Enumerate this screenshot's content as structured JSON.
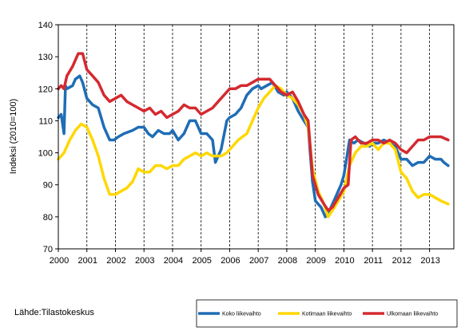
{
  "source_text": "Lähde:Tilastokeskus",
  "chart_data": {
    "type": "line",
    "ylabel": "Indeksi (2010=100)",
    "xlabel": "",
    "ylim": [
      70,
      140
    ],
    "xlim": [
      2000.0,
      2013.85
    ],
    "y_ticks": [
      70,
      80,
      90,
      100,
      110,
      120,
      130,
      140
    ],
    "x_ticks": [
      2000,
      2001,
      2002,
      2003,
      2004,
      2005,
      2006,
      2007,
      2008,
      2009,
      2010,
      2011,
      2012,
      2013
    ],
    "x_tick_labels": [
      "2000",
      "2001",
      "2002",
      "2003",
      "2004",
      "2005",
      "2006",
      "2007",
      "2008",
      "2009",
      "2010",
      "2011",
      "2012",
      "2013"
    ],
    "grid": "vertical dashed lines at each year",
    "legend_position": "bottom-right",
    "series": [
      {
        "name": "Koko liikevaihto",
        "color": "#1f6db5",
        "x": [
          2000.0,
          2000.1,
          2000.2,
          2000.25,
          2000.3,
          2000.5,
          2000.6,
          2000.75,
          2000.85,
          2001.0,
          2001.2,
          2001.4,
          2001.6,
          2001.8,
          2001.95,
          2002.1,
          2002.3,
          2002.6,
          2002.8,
          2003.0,
          2003.15,
          2003.3,
          2003.5,
          2003.7,
          2003.9,
          2004.0,
          2004.2,
          2004.4,
          2004.6,
          2004.8,
          2005.0,
          2005.2,
          2005.4,
          2005.5,
          2005.7,
          2005.9,
          2006.0,
          2006.2,
          2006.4,
          2006.6,
          2006.8,
          2007.0,
          2007.1,
          2007.3,
          2007.5,
          2007.7,
          2007.9,
          2008.0,
          2008.2,
          2008.4,
          2008.6,
          2008.75,
          2008.9,
          2009.0,
          2009.2,
          2009.35,
          2009.5,
          2009.7,
          2009.9,
          2010.0,
          2010.2,
          2010.35,
          2010.5,
          2010.7,
          2010.9,
          2011.0,
          2011.2,
          2011.4,
          2011.6,
          2011.8,
          2012.0,
          2012.2,
          2012.4,
          2012.6,
          2012.8,
          2013.0,
          2013.2,
          2013.4,
          2013.5,
          2013.65
        ],
        "values": [
          111,
          112,
          106,
          121,
          120,
          121,
          123,
          124,
          122,
          117,
          115,
          114,
          108,
          104,
          104,
          105,
          106,
          107,
          108,
          108,
          106,
          105,
          107,
          106,
          106,
          107,
          104,
          106,
          110,
          110,
          106,
          106,
          104,
          97,
          101,
          110,
          111,
          112,
          114,
          118,
          120,
          121,
          120,
          121,
          122,
          119,
          118,
          119,
          117,
          113,
          110,
          108,
          91,
          85,
          83,
          80,
          82,
          86,
          90,
          93,
          104,
          103,
          104,
          103,
          102,
          103,
          103,
          104,
          103,
          102,
          98,
          98,
          96,
          97,
          97,
          99,
          98,
          98,
          97,
          96
        ]
      },
      {
        "name": "Kotimaan liikevaihto",
        "color": "#ffd700",
        "x": [
          2000.0,
          2000.2,
          2000.4,
          2000.6,
          2000.8,
          2001.0,
          2001.2,
          2001.4,
          2001.6,
          2001.8,
          2002.0,
          2002.2,
          2002.4,
          2002.6,
          2002.8,
          2003.0,
          2003.2,
          2003.4,
          2003.6,
          2003.8,
          2004.0,
          2004.2,
          2004.4,
          2004.6,
          2004.8,
          2005.0,
          2005.2,
          2005.4,
          2005.5,
          2005.7,
          2005.9,
          2006.0,
          2006.3,
          2006.6,
          2006.8,
          2007.0,
          2007.2,
          2007.4,
          2007.6,
          2007.8,
          2008.0,
          2008.2,
          2008.4,
          2008.6,
          2008.75,
          2008.9,
          2009.1,
          2009.3,
          2009.45,
          2009.6,
          2009.8,
          2010.0,
          2010.2,
          2010.4,
          2010.6,
          2010.8,
          2011.0,
          2011.2,
          2011.4,
          2011.6,
          2011.8,
          2012.0,
          2012.2,
          2012.4,
          2012.6,
          2012.8,
          2013.0,
          2013.2,
          2013.4,
          2013.65
        ],
        "values": [
          98,
          100,
          104,
          107,
          109,
          108,
          104,
          99,
          92,
          87,
          87,
          88,
          89,
          91,
          95,
          94,
          94,
          96,
          96,
          95,
          96,
          96,
          98,
          99,
          100,
          99,
          100,
          99,
          99,
          99,
          100,
          101,
          104,
          106,
          110,
          114,
          117,
          119,
          121,
          120,
          118,
          117,
          115,
          112,
          108,
          95,
          88,
          84,
          80,
          82,
          85,
          88,
          96,
          100,
          102,
          102,
          103,
          101,
          103,
          103,
          101,
          94,
          92,
          88,
          86,
          87,
          87,
          86,
          85,
          84
        ]
      },
      {
        "name": "Ulkomaan liikevaihto",
        "color": "#d42a30",
        "x": [
          2000.0,
          2000.1,
          2000.2,
          2000.3,
          2000.5,
          2000.7,
          2000.85,
          2001.0,
          2001.2,
          2001.4,
          2001.6,
          2001.8,
          2002.0,
          2002.2,
          2002.4,
          2002.6,
          2002.8,
          2003.0,
          2003.2,
          2003.4,
          2003.6,
          2003.8,
          2004.0,
          2004.2,
          2004.4,
          2004.6,
          2004.8,
          2005.0,
          2005.2,
          2005.4,
          2005.6,
          2005.8,
          2006.0,
          2006.2,
          2006.4,
          2006.6,
          2006.8,
          2007.0,
          2007.2,
          2007.4,
          2007.6,
          2007.8,
          2008.0,
          2008.2,
          2008.4,
          2008.6,
          2008.75,
          2008.9,
          2009.1,
          2009.3,
          2009.45,
          2009.6,
          2009.8,
          2010.0,
          2010.15,
          2010.25,
          2010.4,
          2010.6,
          2010.8,
          2011.0,
          2011.2,
          2011.4,
          2011.6,
          2011.8,
          2012.0,
          2012.2,
          2012.4,
          2012.6,
          2012.8,
          2013.0,
          2013.2,
          2013.4,
          2013.65
        ],
        "values": [
          120,
          121,
          120,
          124,
          127,
          131,
          131,
          126,
          124,
          122,
          118,
          116,
          117,
          118,
          116,
          115,
          114,
          113,
          114,
          112,
          113,
          111,
          112,
          113,
          115,
          114,
          114,
          112,
          113,
          114,
          116,
          118,
          120,
          120,
          121,
          121,
          122,
          123,
          123,
          123,
          121,
          119,
          118,
          119,
          116,
          112,
          110,
          93,
          87,
          84,
          82,
          83,
          86,
          89,
          90,
          104,
          105,
          103,
          103,
          104,
          104,
          103,
          104,
          103,
          101,
          100,
          102,
          104,
          104,
          105,
          105,
          105,
          104
        ]
      }
    ]
  }
}
